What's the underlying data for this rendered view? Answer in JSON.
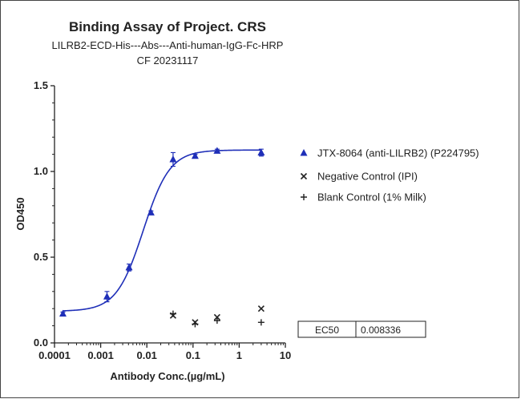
{
  "chart_data": {
    "type": "scatter",
    "title": "Binding Assay of Project. CRS",
    "subtitle_line1": "LILRB2-ECD-His---Abs---Anti-human-IgG-Fc-HRP",
    "subtitle_line2": "CF 20231117",
    "xlabel": "Antibody Conc.(µg/mL)",
    "ylabel": "OD450",
    "x_scale": "log",
    "xlim": [
      0.0001,
      10
    ],
    "ylim": [
      0.0,
      1.5
    ],
    "x_ticks": [
      {
        "value": 0.0001,
        "label": "0.0001"
      },
      {
        "value": 0.001,
        "label": "0.001"
      },
      {
        "value": 0.01,
        "label": "0.01"
      },
      {
        "value": 0.1,
        "label": "0.1"
      },
      {
        "value": 1,
        "label": "1"
      },
      {
        "value": 10,
        "label": "10"
      }
    ],
    "y_ticks": [
      {
        "value": 0.0,
        "label": "0.0"
      },
      {
        "value": 0.5,
        "label": "0.5"
      },
      {
        "value": 1.0,
        "label": "1.0"
      },
      {
        "value": 1.5,
        "label": "1.5"
      }
    ],
    "legend_position": "right",
    "series": [
      {
        "name": "JTX-8064 (anti-LILRB2) (P224795)",
        "marker": "triangle",
        "color": "#1f2fb8",
        "x": [
          0.000152,
          0.00137,
          0.00412,
          0.0123,
          0.037,
          0.111,
          0.333,
          3.0
        ],
        "y": [
          0.17,
          0.27,
          0.44,
          0.76,
          1.07,
          1.09,
          1.12,
          1.11
        ],
        "err": [
          0.01,
          0.03,
          0.02,
          0.01,
          0.04,
          0.01,
          0.01,
          0.02
        ],
        "fit": {
          "bottom": 0.185,
          "top": 1.125,
          "ec50": 0.008336,
          "hill": 1.5
        }
      },
      {
        "name": "Negative Control (IPI)",
        "marker": "x",
        "color": "#222222",
        "x": [
          0.037,
          0.111,
          0.333,
          3.0
        ],
        "y": [
          0.16,
          0.12,
          0.15,
          0.2
        ]
      },
      {
        "name": "Blank Control (1% Milk)",
        "marker": "plus",
        "color": "#222222",
        "x": [
          0.037,
          0.111,
          0.333,
          3.0
        ],
        "y": [
          0.17,
          0.11,
          0.13,
          0.12
        ]
      }
    ],
    "table": {
      "label": "EC50",
      "value": "0.008336"
    }
  }
}
